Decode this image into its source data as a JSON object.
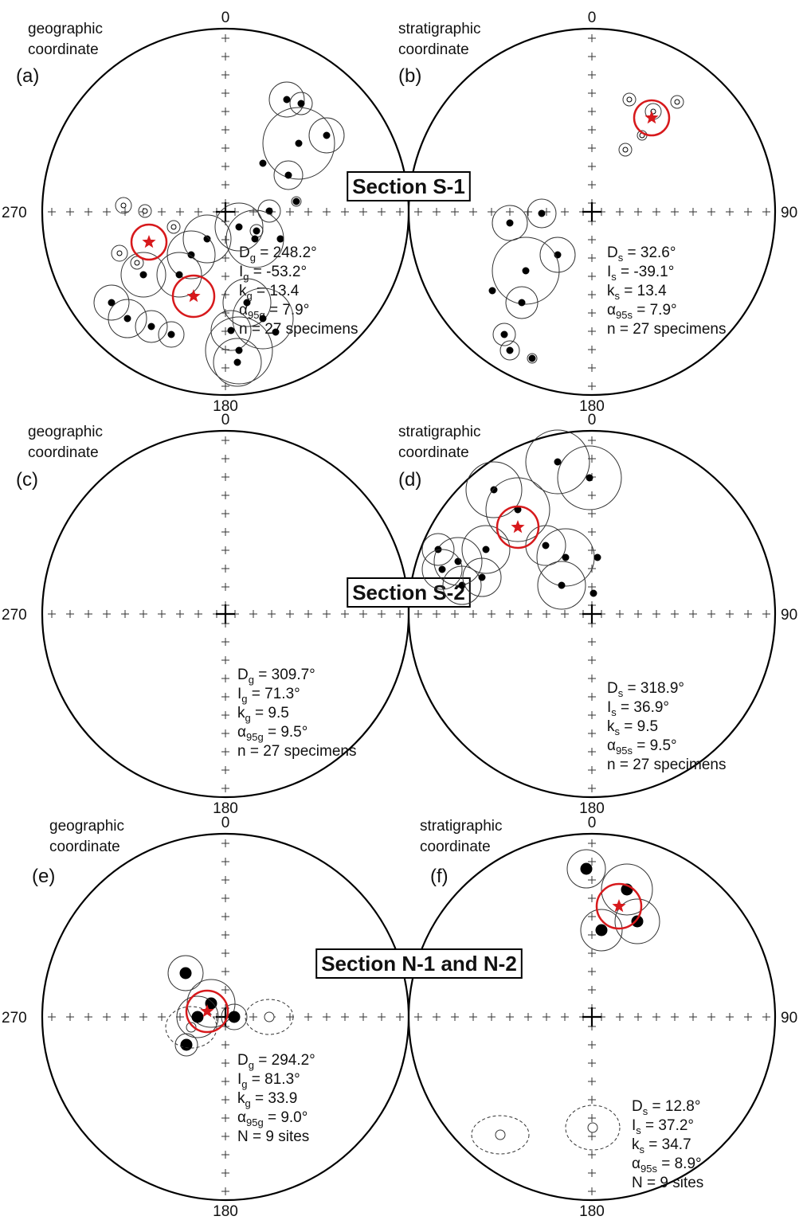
{
  "directions": {
    "north": "0",
    "east": "90",
    "south": "180",
    "west": "270"
  },
  "sections": [
    "Section S-1",
    "Section S-2",
    "Section N-1 and N-2"
  ],
  "panels": [
    {
      "label": "(a)",
      "coordinate": [
        "geographic",
        "coordinate"
      ],
      "stats": [
        {
          "symbol": "D",
          "sub": "g",
          "text": " = 248.2°"
        },
        {
          "symbol": "I",
          "sub": "g",
          "text": " = -53.2°"
        },
        {
          "symbol": "k",
          "sub": "g",
          "text": " = 13.4"
        },
        {
          "symbol": "α",
          "sub": "95g",
          "text": " = 7.9°"
        },
        {
          "symbol": "n",
          "sub": "",
          "text": " = 27 specimens"
        }
      ]
    },
    {
      "label": "(b)",
      "coordinate": [
        "stratigraphic",
        "coordinate"
      ],
      "stats": [
        {
          "symbol": "D",
          "sub": "s",
          "text": " = 32.6°"
        },
        {
          "symbol": "I",
          "sub": "s",
          "text": " = -39.1°"
        },
        {
          "symbol": "k",
          "sub": "s",
          "text": " = 13.4"
        },
        {
          "symbol": "α",
          "sub": "95s",
          "text": " = 7.9°"
        },
        {
          "symbol": "n",
          "sub": "",
          "text": " = 27 specimens"
        }
      ]
    },
    {
      "label": "(c)",
      "coordinate": [
        "geographic",
        "coordinate"
      ],
      "stats": [
        {
          "symbol": "D",
          "sub": "g",
          "text": " = 309.7°"
        },
        {
          "symbol": "I",
          "sub": "g",
          "text": " = 71.3°"
        },
        {
          "symbol": "k",
          "sub": "g",
          "text": " = 9.5"
        },
        {
          "symbol": "α",
          "sub": "95g",
          "text": " = 9.5°"
        },
        {
          "symbol": "n",
          "sub": "",
          "text": " = 27 specimens"
        }
      ]
    },
    {
      "label": "(d)",
      "coordinate": [
        "stratigraphic",
        "coordinate"
      ],
      "stats": [
        {
          "symbol": "D",
          "sub": "s",
          "text": " = 318.9°"
        },
        {
          "symbol": "I",
          "sub": "s",
          "text": " = 36.9°"
        },
        {
          "symbol": "k",
          "sub": "s",
          "text": " = 9.5"
        },
        {
          "symbol": "α",
          "sub": "95s",
          "text": " = 9.5°"
        },
        {
          "symbol": "n",
          "sub": "",
          "text": " = 27 specimens"
        }
      ]
    },
    {
      "label": "(e)",
      "coordinate": [
        "geographic",
        "coordinate"
      ],
      "stats": [
        {
          "symbol": "D",
          "sub": "g",
          "text": " = 294.2°"
        },
        {
          "symbol": "I",
          "sub": "g",
          "text": " = 81.3°"
        },
        {
          "symbol": "k",
          "sub": "g",
          "text": " = 33.9"
        },
        {
          "symbol": "α",
          "sub": "95g",
          "text": " = 9.0°"
        },
        {
          "symbol": "N",
          "sub": "",
          "text": " = 9 sites"
        }
      ]
    },
    {
      "label": "(f)",
      "coordinate": [
        "stratigraphic",
        "coordinate"
      ],
      "stats": [
        {
          "symbol": "D",
          "sub": "s",
          "text": " = 12.8°"
        },
        {
          "symbol": "I",
          "sub": "s",
          "text": " = 37.2°"
        },
        {
          "symbol": "k",
          "sub": "s",
          "text": " = 34.7"
        },
        {
          "symbol": "α",
          "sub": "95s",
          "text": " = 8.9°"
        },
        {
          "symbol": "N",
          "sub": "",
          "text": " = 9 sites"
        }
      ]
    }
  ]
}
